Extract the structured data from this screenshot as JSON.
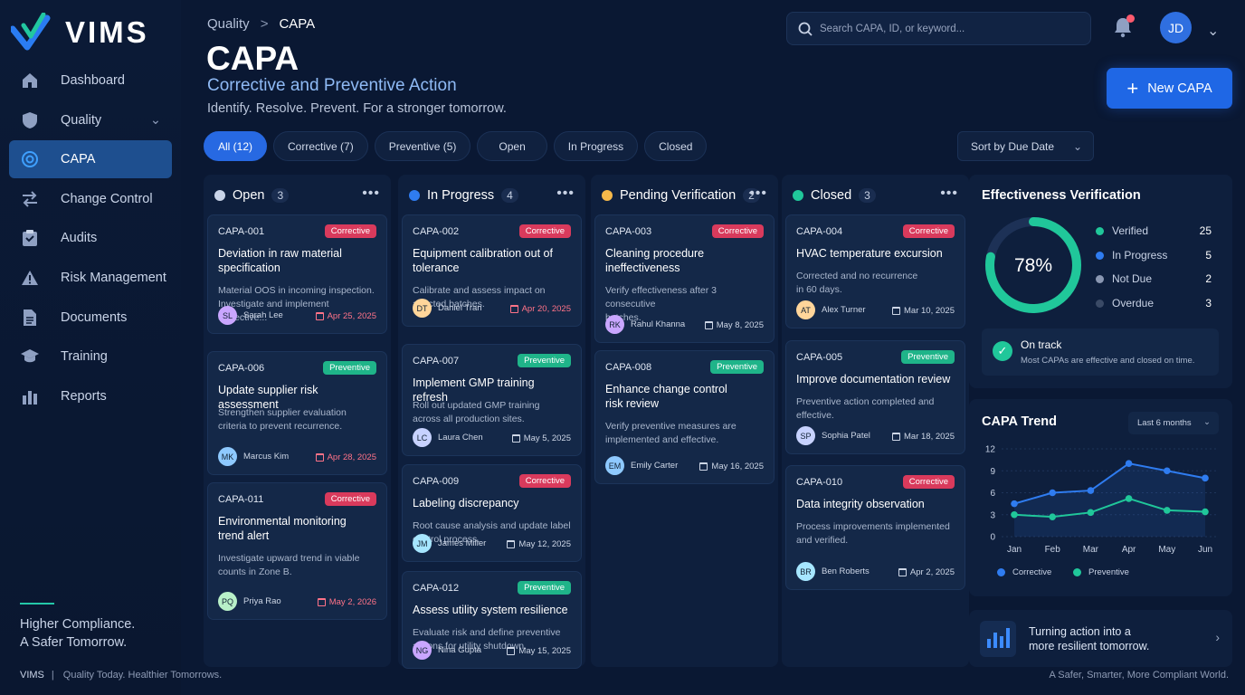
{
  "app": {
    "name": "VIMS"
  },
  "sidebar": {
    "items": [
      {
        "label": "Dashboard",
        "icon": "home-icon"
      },
      {
        "label": "Quality",
        "icon": "shield-icon",
        "has_submenu": true
      },
      {
        "label": "CAPA",
        "icon": "target-icon",
        "active": true
      },
      {
        "label": "Change Control",
        "icon": "swap-arrows-icon"
      },
      {
        "label": "Audits",
        "icon": "clipboard-icon"
      },
      {
        "label": "Risk Management",
        "icon": "warning-icon"
      },
      {
        "label": "Documents",
        "icon": "document-icon"
      },
      {
        "label": "Training",
        "icon": "graduation-cap-icon"
      },
      {
        "label": "Reports",
        "icon": "bar-chart-icon"
      }
    ],
    "tagline_line1": "Higher Compliance.",
    "tagline_line2": "A Safer Tomorrow."
  },
  "footer": {
    "brand": "VIMS",
    "separator": "|",
    "left_text": "Quality Today. Healthier Tomorrows.",
    "right_text": "A Safer, Smarter, More Compliant World."
  },
  "breadcrumb": {
    "parent": "Quality",
    "separator": ">",
    "current": "CAPA"
  },
  "header": {
    "title": "CAPA",
    "subtitle": "Corrective and Preventive Action",
    "description": "Identify. Resolve. Prevent. For a stronger tomorrow."
  },
  "search": {
    "placeholder": "Search CAPA, ID, or keyword..."
  },
  "user": {
    "initials": "JD",
    "has_notification": true
  },
  "new_button": {
    "label": "New CAPA"
  },
  "filters": [
    {
      "label": "All (12)",
      "active": true
    },
    {
      "label": "Corrective (7)"
    },
    {
      "label": "Preventive (5)"
    },
    {
      "label": "Open"
    },
    {
      "label": "In Progress"
    },
    {
      "label": "Closed"
    }
  ],
  "sort": {
    "label": "Sort by Due Date"
  },
  "colors": {
    "accent": "#1f67e5",
    "corrective": "#d93a5c",
    "preventive": "#1fb489",
    "open": "#c9d4e8",
    "in_progress": "#2f7cf0",
    "pending": "#f5b84a",
    "closed": "#20c79a"
  },
  "columns": [
    {
      "title": "Open",
      "count": "3",
      "color": "#c9d4e8",
      "cards": [
        {
          "id": "CAPA-001",
          "type": "Corrective",
          "title_l1": "Deviation in raw material",
          "title_l2": "specification",
          "desc_l1": "Material OOS in incoming inspection.",
          "desc_l2": "Investigate and implement corrective...",
          "initials": "SL",
          "assignee": "Sarah Lee",
          "due": "Apr 25, 2025",
          "overdue": true
        },
        {
          "id": "CAPA-006",
          "type": "Preventive",
          "title_l1": "Update supplier risk assessment",
          "title_l2": "",
          "desc_l1": "Strengthen supplier evaluation",
          "desc_l2": "criteria to prevent recurrence.",
          "initials": "MK",
          "assignee": "Marcus Kim",
          "due": "Apr 28, 2025",
          "overdue": true
        },
        {
          "id": "CAPA-011",
          "type": "Corrective",
          "title_l1": "Environmental monitoring",
          "title_l2": "trend alert",
          "desc_l1": "Investigate upward trend in viable",
          "desc_l2": "counts in Zone B.",
          "initials": "PQ",
          "assignee": "Priya Rao",
          "due": "May 2, 2026",
          "overdue": true
        }
      ]
    },
    {
      "title": "In Progress",
      "count": "4",
      "color": "#2f7cf0",
      "cards": [
        {
          "id": "CAPA-002",
          "type": "Corrective",
          "title_l1": "Equipment calibration out of",
          "title_l2": "tolerance",
          "desc_l1": "Calibrate and assess impact on",
          "desc_l2": "affected batches.",
          "initials": "DT",
          "assignee": "Daniel Tran",
          "due": "Apr 20, 2025",
          "overdue": true
        },
        {
          "id": "CAPA-007",
          "type": "Preventive",
          "title_l1": "Implement GMP training refresh",
          "title_l2": "",
          "desc_l1": "Roll out updated GMP training",
          "desc_l2": "across all production sites.",
          "initials": "LC",
          "assignee": "Laura Chen",
          "due": "May 5, 2025",
          "overdue": false
        },
        {
          "id": "CAPA-009",
          "type": "Corrective",
          "title_l1": "Labeling discrepancy",
          "title_l2": "",
          "desc_l1": "Root cause analysis and update label",
          "desc_l2": "control process.",
          "initials": "JM",
          "assignee": "James Miller",
          "due": "May 12, 2025",
          "overdue": false
        },
        {
          "id": "CAPA-012",
          "type": "Preventive",
          "title_l1": "Assess utility system resilience",
          "title_l2": "",
          "desc_l1": "Evaluate risk and define preventive",
          "desc_l2": "actions for utility shutdown.",
          "initials": "NG",
          "assignee": "Nina Gupta",
          "due": "May 15, 2025",
          "overdue": false
        }
      ]
    },
    {
      "title": "Pending Verification",
      "count": "2",
      "color": "#f5b84a",
      "cards": [
        {
          "id": "CAPA-003",
          "type": "Corrective",
          "title_l1": "Cleaning procedure",
          "title_l2": "ineffectiveness",
          "desc_l1": "Verify effectiveness after 3 consecutive",
          "desc_l2": "batches.",
          "initials": "RK",
          "assignee": "Rahul Khanna",
          "due": "May 8, 2025",
          "overdue": false
        },
        {
          "id": "CAPA-008",
          "type": "Preventive",
          "title_l1": "Enhance change control",
          "title_l2": "risk review",
          "desc_l1": "Verify preventive measures are",
          "desc_l2": "implemented and effective.",
          "initials": "EM",
          "assignee": "Emily Carter",
          "due": "May 16, 2025",
          "overdue": false
        }
      ]
    },
    {
      "title": "Closed",
      "count": "3",
      "color": "#20c79a",
      "cards": [
        {
          "id": "CAPA-004",
          "type": "Corrective",
          "title_l1": "HVAC temperature excursion",
          "title_l2": "",
          "desc_l1": "Corrected and no recurrence",
          "desc_l2": "in 60 days.",
          "initials": "AT",
          "assignee": "Alex Turner",
          "due": "Mar 10, 2025",
          "overdue": false
        },
        {
          "id": "CAPA-005",
          "type": "Preventive",
          "title_l1": "Improve documentation review",
          "title_l2": "",
          "desc_l1": "Preventive action completed and",
          "desc_l2": "effective.",
          "initials": "SP",
          "assignee": "Sophia Patel",
          "due": "Mar 18, 2025",
          "overdue": false
        },
        {
          "id": "CAPA-010",
          "type": "Corrective",
          "title_l1": "Data integrity observation",
          "title_l2": "",
          "desc_l1": "Process improvements implemented",
          "desc_l2": "and verified.",
          "initials": "BR",
          "assignee": "Ben Roberts",
          "due": "Apr 2, 2025",
          "overdue": false
        }
      ]
    }
  ],
  "effectiveness": {
    "title": "Effectiveness Verification",
    "percent_label": "78%",
    "percent_value": 0.78,
    "legend": [
      {
        "label": "Verified",
        "value": "25",
        "color": "#20c79a"
      },
      {
        "label": "In Progress",
        "value": "5",
        "color": "#2f7cf0"
      },
      {
        "label": "Not Due",
        "value": "2",
        "color": "#8a97b2"
      },
      {
        "label": "Overdue",
        "value": "3",
        "color": "#3a4a66"
      }
    ],
    "status_title": "On track",
    "status_text": "Most CAPAs are effective and closed on time."
  },
  "trend": {
    "title": "CAPA Trend",
    "range_label": "Last 6 months"
  },
  "chart_data": {
    "type": "line",
    "title": "CAPA Trend",
    "x": [
      "Jan",
      "Feb",
      "Mar",
      "Apr",
      "May",
      "Jun"
    ],
    "yticks": [
      "0",
      "3",
      "6",
      "9",
      "12"
    ],
    "ylim": [
      0,
      12
    ],
    "grid": true,
    "legend_placement": "bottom",
    "series": [
      {
        "name": "Corrective",
        "color": "#2f7cf0",
        "values": [
          4.5,
          6,
          6.3,
          10,
          9,
          8
        ]
      },
      {
        "name": "Preventive",
        "color": "#20c79a",
        "values": [
          3,
          2.7,
          3.3,
          5.2,
          3.6,
          3.4
        ]
      }
    ]
  },
  "banner": {
    "line1": "Turning action into a",
    "line2": "more resilient tomorrow."
  }
}
